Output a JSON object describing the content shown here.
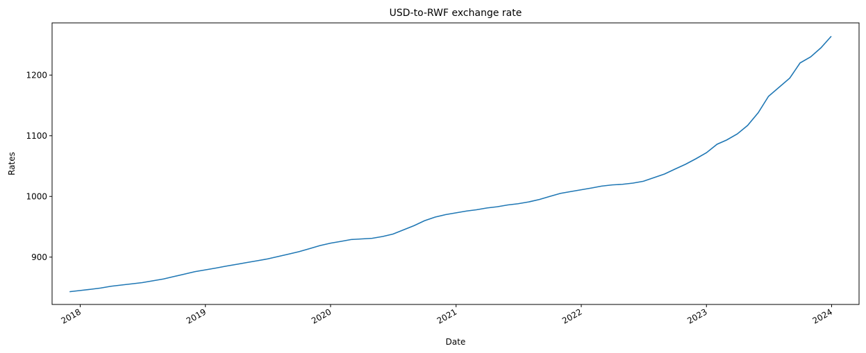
{
  "chart_data": {
    "type": "line",
    "title": "USD-to-RWF exchange rate",
    "xlabel": "Date",
    "ylabel": "Rates",
    "xlim": [
      "2017-10-11",
      "2024-03-21"
    ],
    "ylim": [
      822,
      1286
    ],
    "x_ticks": [
      "2018-01-01",
      "2019-01-01",
      "2020-01-01",
      "2021-01-01",
      "2022-01-01",
      "2023-01-01",
      "2024-01-01"
    ],
    "x_tick_labels": [
      "2018",
      "2019",
      "2020",
      "2021",
      "2022",
      "2023",
      "2024"
    ],
    "y_ticks": [
      900,
      1000,
      1100,
      1200
    ],
    "y_tick_labels": [
      "900",
      "1000",
      "1100",
      "1200"
    ],
    "grid": false,
    "color": "#1f77b4",
    "series": [
      {
        "x": [
          "2017-12-01",
          "2018-01-01",
          "2018-02-01",
          "2018-03-01",
          "2018-04-01",
          "2018-05-01",
          "2018-06-01",
          "2018-07-01",
          "2018-08-01",
          "2018-09-01",
          "2018-10-01",
          "2018-11-01",
          "2018-12-01",
          "2019-01-01",
          "2019-02-01",
          "2019-03-01",
          "2019-04-01",
          "2019-05-01",
          "2019-06-01",
          "2019-07-01",
          "2019-08-01",
          "2019-09-01",
          "2019-10-01",
          "2019-11-01",
          "2019-12-01",
          "2020-01-01",
          "2020-02-01",
          "2020-03-01",
          "2020-04-01",
          "2020-05-01",
          "2020-06-01",
          "2020-07-01",
          "2020-08-01",
          "2020-09-01",
          "2020-10-01",
          "2020-11-01",
          "2020-12-01",
          "2021-01-01",
          "2021-02-01",
          "2021-03-01",
          "2021-04-01",
          "2021-05-01",
          "2021-06-01",
          "2021-07-01",
          "2021-08-01",
          "2021-09-01",
          "2021-10-01",
          "2021-11-01",
          "2021-12-01",
          "2022-01-01",
          "2022-02-01",
          "2022-03-01",
          "2022-04-01",
          "2022-05-01",
          "2022-06-01",
          "2022-07-01",
          "2022-08-01",
          "2022-09-01",
          "2022-10-01",
          "2022-11-01",
          "2022-12-01",
          "2023-01-01",
          "2023-02-01",
          "2023-03-01",
          "2023-04-01",
          "2023-05-01",
          "2023-06-01",
          "2023-07-01",
          "2023-08-01",
          "2023-09-01",
          "2023-10-01",
          "2023-11-01",
          "2023-12-01",
          "2023-12-31"
        ],
        "y": [
          843,
          845,
          847,
          849,
          852,
          854,
          856,
          858,
          861,
          864,
          868,
          872,
          876,
          879,
          882,
          885,
          888,
          891,
          894,
          897,
          901,
          905,
          909,
          914,
          919,
          923,
          926,
          929,
          930,
          931,
          934,
          938,
          945,
          952,
          960,
          966,
          970,
          973,
          976,
          978,
          981,
          983,
          986,
          988,
          991,
          995,
          1000,
          1005,
          1008,
          1011,
          1014,
          1017,
          1019,
          1020,
          1022,
          1025,
          1031,
          1037,
          1045,
          1053,
          1062,
          1072,
          1086,
          1093,
          1103,
          1117,
          1138,
          1165,
          1180,
          1195,
          1220,
          1230,
          1245,
          1264
        ]
      }
    ]
  }
}
